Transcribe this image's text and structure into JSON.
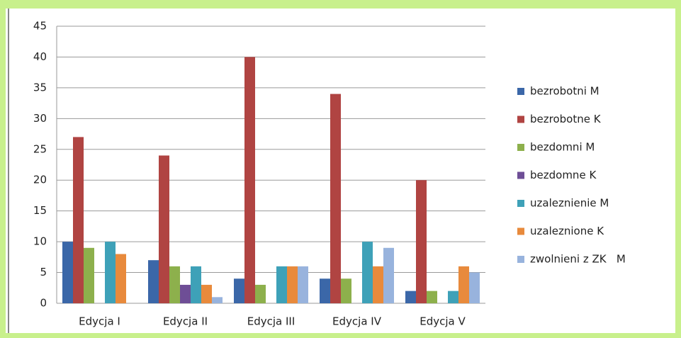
{
  "chart_data": {
    "type": "bar",
    "categories": [
      "Edycja I",
      "Edycja II",
      "Edycja III",
      "Edycja IV",
      "Edycja V"
    ],
    "series": [
      {
        "name": "bezrobotni M",
        "color": "#3b67a8",
        "values": [
          10,
          7,
          4,
          4,
          2
        ]
      },
      {
        "name": "bezrobotne K",
        "color": "#b04442",
        "values": [
          27,
          24,
          40,
          34,
          20
        ]
      },
      {
        "name": "bezdomni M",
        "color": "#8db04c",
        "values": [
          9,
          6,
          3,
          4,
          2
        ]
      },
      {
        "name": "bezdomne K",
        "color": "#6e4e96",
        "values": [
          0,
          3,
          0,
          0,
          0
        ]
      },
      {
        "name": "uzaleznienie M",
        "color": "#3ea1b8",
        "values": [
          10,
          6,
          6,
          10,
          2
        ]
      },
      {
        "name": "uzaleznione K",
        "color": "#e88a3c",
        "values": [
          8,
          3,
          6,
          6,
          6
        ]
      },
      {
        "name": "zwolnieni z ZK   M",
        "color": "#98b3dd",
        "values": [
          0,
          1,
          6,
          9,
          5
        ]
      }
    ],
    "ylim": [
      0,
      45
    ],
    "yticks": [
      0,
      5,
      10,
      15,
      20,
      25,
      30,
      35,
      40,
      45
    ],
    "grid": true,
    "legend": "right"
  }
}
